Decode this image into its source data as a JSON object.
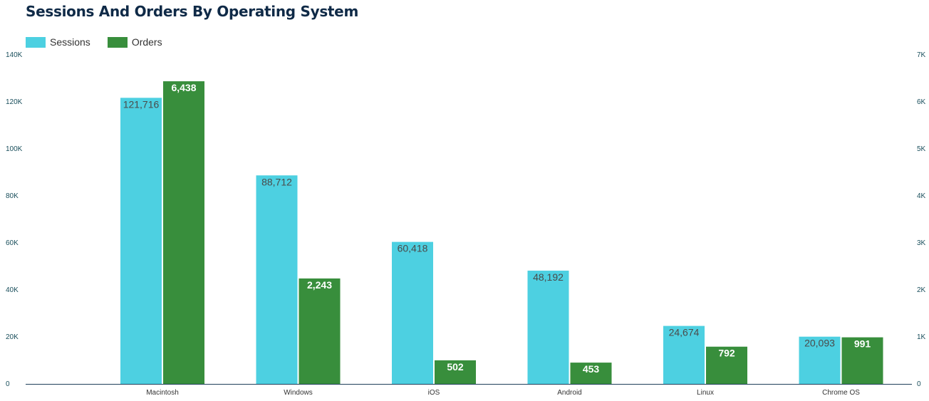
{
  "chart_data": {
    "type": "bar",
    "title": "Sessions And Orders By Operating System",
    "categories": [
      "Macintosh",
      "Windows",
      "iOS",
      "Android",
      "Linux",
      "Chrome OS"
    ],
    "series": [
      {
        "name": "Sessions",
        "axis": "left",
        "color": "#4dd0e1",
        "values": [
          121716,
          88712,
          60418,
          48192,
          24674,
          20093
        ],
        "labels": [
          "121,716",
          "88,712",
          "60,418",
          "48,192",
          "24,674",
          "20,093"
        ]
      },
      {
        "name": "Orders",
        "axis": "right",
        "color": "#388e3c",
        "values": [
          6438,
          2243,
          502,
          453,
          792,
          991
        ],
        "labels": [
          "6,438",
          "2,243",
          "502",
          "453",
          "792",
          "991"
        ]
      }
    ],
    "y_left": {
      "lim": [
        0,
        140000
      ],
      "ticks": [
        "0",
        "20K",
        "40K",
        "60K",
        "80K",
        "100K",
        "120K",
        "140K"
      ]
    },
    "y_right": {
      "lim": [
        0,
        7000
      ],
      "ticks": [
        "0",
        "1K",
        "2K",
        "3K",
        "4K",
        "5K",
        "6K",
        "7K"
      ]
    },
    "xlabel": "",
    "ylabel": "",
    "legend": "top-left",
    "grid": false
  }
}
